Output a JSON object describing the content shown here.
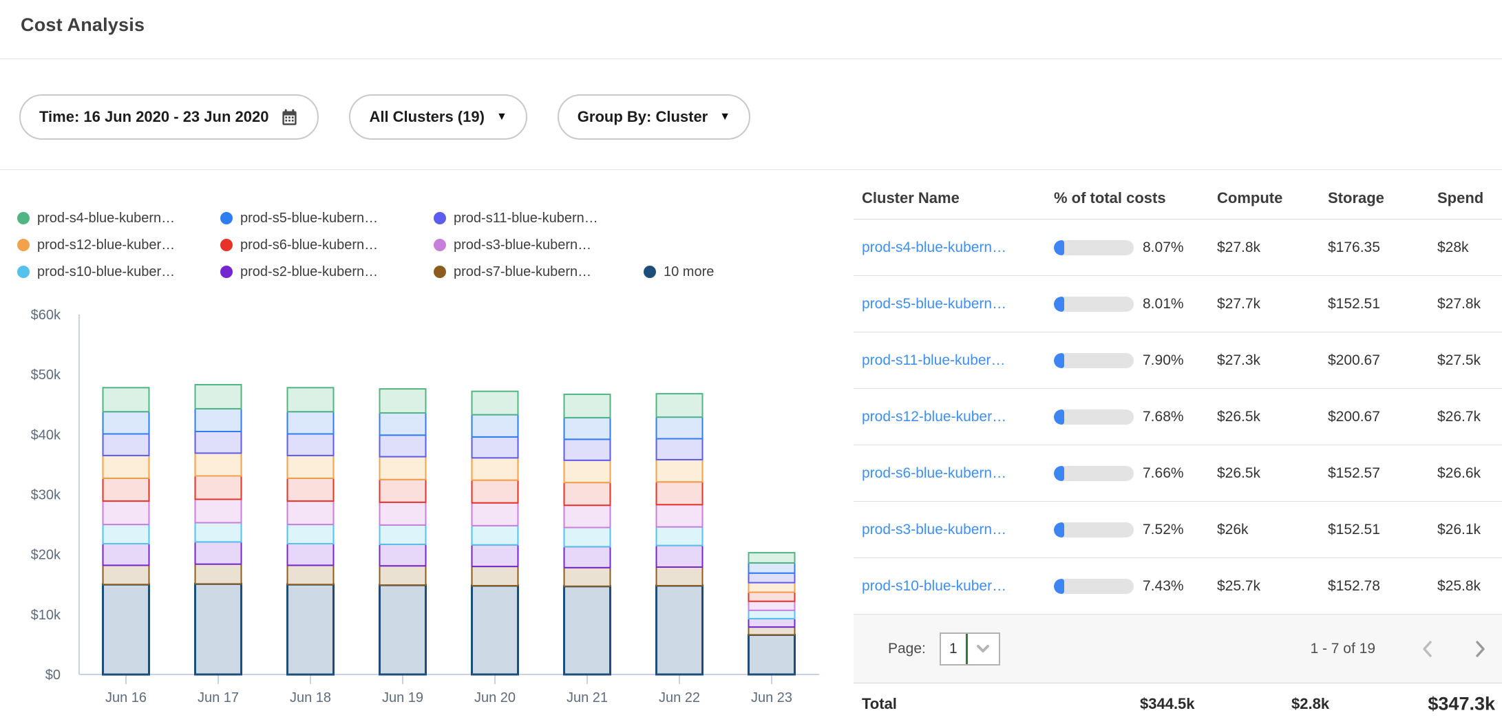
{
  "page": {
    "title": "Cost Analysis"
  },
  "filters": {
    "time_label": "Time: 16 Jun 2020 - 23 Jun 2020",
    "clusters_label": "All Clusters (19)",
    "group_by_label": "Group By: Cluster"
  },
  "chart_data": {
    "type": "bar",
    "stacked": true,
    "title": "",
    "unit": "$k per day",
    "ylim": [
      0,
      60
    ],
    "grid": false,
    "yticks": [
      {
        "value": 0,
        "label": "$0"
      },
      {
        "value": 10,
        "label": "$10k"
      },
      {
        "value": 20,
        "label": "$20k"
      },
      {
        "value": 30,
        "label": "$30k"
      },
      {
        "value": 40,
        "label": "$40k"
      },
      {
        "value": 50,
        "label": "$50k"
      },
      {
        "value": 60,
        "label": "$60k"
      }
    ],
    "categories": [
      "Jun 16",
      "Jun 17",
      "Jun 18",
      "Jun 19",
      "Jun 20",
      "Jun 21",
      "Jun 22",
      "Jun 23"
    ],
    "series": [
      {
        "name": "10 more",
        "color": "#1d4e79",
        "fill": "#cdd9e5",
        "stroke_width": 3,
        "values": [
          15.0,
          15.1,
          15.0,
          14.9,
          14.8,
          14.7,
          14.8,
          6.6
        ]
      },
      {
        "name": "prod-s7-blue-kubern…",
        "color": "#8c5c1e",
        "fill": "#eae1d2",
        "values": [
          3.2,
          3.3,
          3.2,
          3.2,
          3.2,
          3.1,
          3.1,
          1.3
        ]
      },
      {
        "name": "prod-s2-blue-kubern…",
        "color": "#7527cf",
        "fill": "#e7d8f9",
        "values": [
          3.6,
          3.7,
          3.6,
          3.6,
          3.6,
          3.5,
          3.6,
          1.4
        ]
      },
      {
        "name": "prod-s10-blue-kuber…",
        "color": "#54c2ec",
        "fill": "#def4fb",
        "values": [
          3.2,
          3.2,
          3.2,
          3.2,
          3.2,
          3.2,
          3.1,
          1.4
        ]
      },
      {
        "name": "prod-s3-blue-kubern…",
        "color": "#c87fda",
        "fill": "#f5e4f8",
        "values": [
          3.9,
          3.9,
          3.9,
          3.8,
          3.8,
          3.7,
          3.7,
          1.5
        ]
      },
      {
        "name": "prod-s6-blue-kubern…",
        "color": "#e63228",
        "fill": "#fbdfdc",
        "values": [
          3.8,
          3.9,
          3.8,
          3.8,
          3.8,
          3.8,
          3.8,
          1.5
        ]
      },
      {
        "name": "prod-s12-blue-kuber…",
        "color": "#f1a24b",
        "fill": "#fdeeda",
        "values": [
          3.8,
          3.8,
          3.8,
          3.8,
          3.7,
          3.7,
          3.7,
          1.6
        ]
      },
      {
        "name": "prod-s11-blue-kubern…",
        "color": "#5c5cf0",
        "fill": "#dfdefb",
        "values": [
          3.6,
          3.6,
          3.6,
          3.6,
          3.5,
          3.5,
          3.5,
          1.6
        ]
      },
      {
        "name": "prod-s5-blue-kubern…",
        "color": "#2f7df2",
        "fill": "#dbe8fc",
        "values": [
          3.7,
          3.8,
          3.7,
          3.7,
          3.7,
          3.6,
          3.6,
          1.7
        ]
      },
      {
        "name": "prod-s4-blue-kubern…",
        "color": "#50b583",
        "fill": "#dcf1e6",
        "values": [
          4.0,
          4.0,
          4.0,
          4.0,
          3.9,
          3.9,
          3.9,
          1.7
        ]
      }
    ],
    "legend": {
      "position": "top",
      "rows": [
        [
          {
            "label": "prod-s4-blue-kubern…",
            "color": "#50b583"
          },
          {
            "label": "prod-s5-blue-kubern…",
            "color": "#2f7df2"
          },
          {
            "label": "prod-s11-blue-kubern…",
            "color": "#5c5cf0"
          }
        ],
        [
          {
            "label": "prod-s12-blue-kuber…",
            "color": "#f1a24b"
          },
          {
            "label": "prod-s6-blue-kubern…",
            "color": "#e63228"
          },
          {
            "label": "prod-s3-blue-kubern…",
            "color": "#c87fda"
          }
        ],
        [
          {
            "label": "prod-s10-blue-kuber…",
            "color": "#54c2ec"
          },
          {
            "label": "prod-s2-blue-kubern…",
            "color": "#7527cf"
          },
          {
            "label": "prod-s7-blue-kubern…",
            "color": "#8c5c1e"
          },
          {
            "label": "10 more",
            "color": "#1d4e79"
          }
        ]
      ]
    }
  },
  "table": {
    "columns": [
      "Cluster Name",
      "% of total costs",
      "Compute",
      "Storage",
      "Spend"
    ],
    "link_color": "#3f8ef5",
    "progress_color": "#3d85f2",
    "rows": [
      {
        "name": "prod-s4-blue-kubern…",
        "pct": "8.07%",
        "pct_value": 8.07,
        "compute": "$27.8k",
        "storage": "$176.35",
        "spend": "$28k"
      },
      {
        "name": "prod-s5-blue-kubern…",
        "pct": "8.01%",
        "pct_value": 8.01,
        "compute": "$27.7k",
        "storage": "$152.51",
        "spend": "$27.8k"
      },
      {
        "name": "prod-s11-blue-kuber…",
        "pct": "7.90%",
        "pct_value": 7.9,
        "compute": "$27.3k",
        "storage": "$200.67",
        "spend": "$27.5k"
      },
      {
        "name": "prod-s12-blue-kuber…",
        "pct": "7.68%",
        "pct_value": 7.68,
        "compute": "$26.5k",
        "storage": "$200.67",
        "spend": "$26.7k"
      },
      {
        "name": "prod-s6-blue-kubern…",
        "pct": "7.66%",
        "pct_value": 7.66,
        "compute": "$26.5k",
        "storage": "$152.57",
        "spend": "$26.6k"
      },
      {
        "name": "prod-s3-blue-kubern…",
        "pct": "7.52%",
        "pct_value": 7.52,
        "compute": "$26k",
        "storage": "$152.51",
        "spend": "$26.1k"
      },
      {
        "name": "prod-s10-blue-kuber…",
        "pct": "7.43%",
        "pct_value": 7.43,
        "compute": "$25.7k",
        "storage": "$152.78",
        "spend": "$25.8k"
      }
    ],
    "pagination": {
      "page_label": "Page:",
      "page": "1",
      "range": "1 - 7 of 19"
    },
    "total": {
      "label": "Total",
      "compute": "$344.5k",
      "storage": "$2.8k",
      "spend": "$347.3k"
    }
  }
}
